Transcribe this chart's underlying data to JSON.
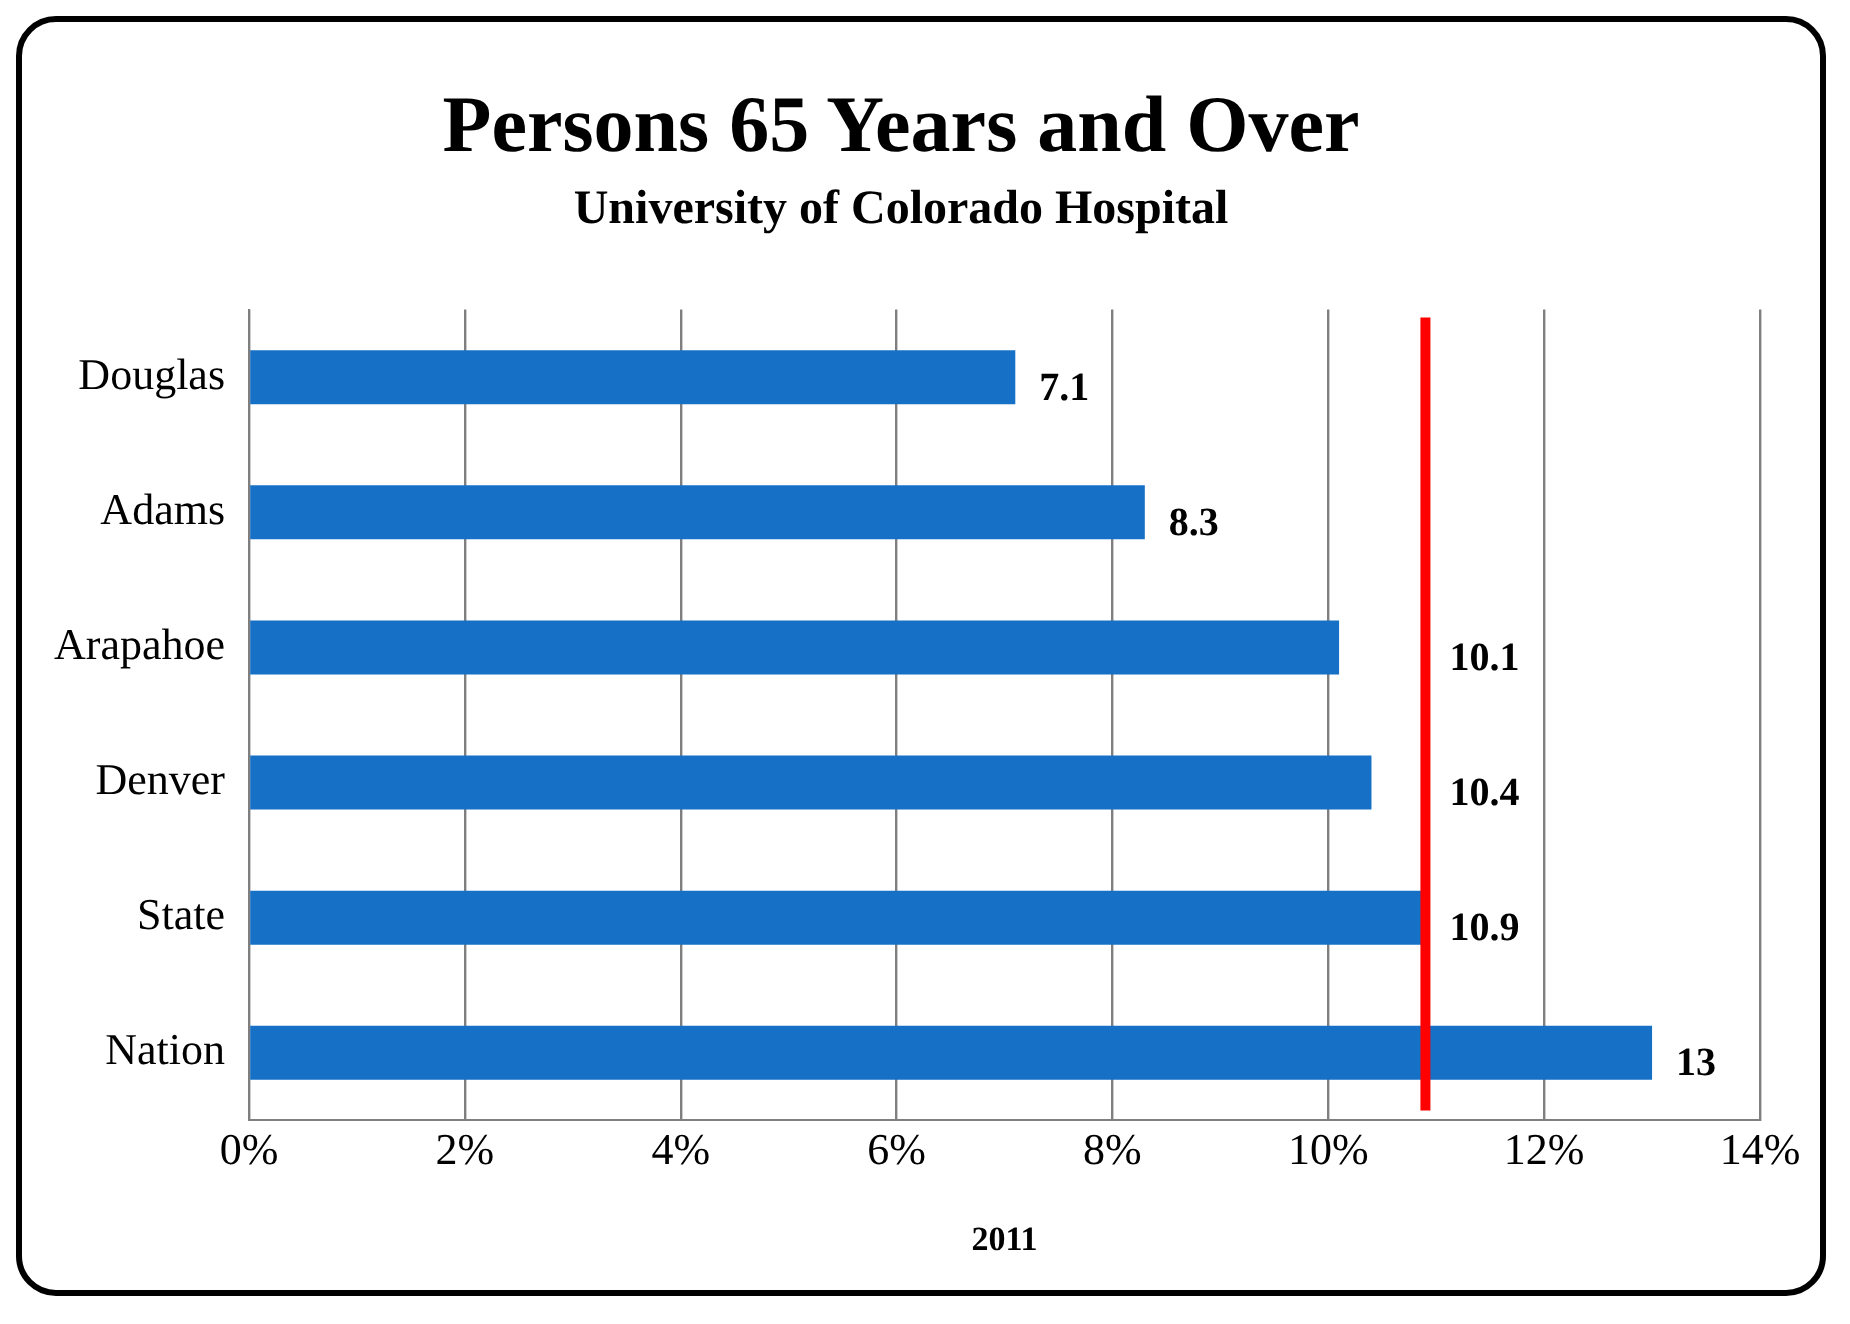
{
  "chart_data": {
    "type": "bar",
    "orientation": "horizontal",
    "title": "Persons 65 Years and Over",
    "subtitle": "University of Colorado Hospital",
    "xlabel": "2011",
    "categories": [
      "Douglas",
      "Adams",
      "Arapahoe",
      "Denver",
      "State",
      "Nation"
    ],
    "values": [
      7.1,
      8.3,
      10.1,
      10.4,
      10.9,
      13
    ],
    "color": "#1570c6",
    "xlim": [
      0,
      14
    ],
    "xticks": [
      {
        "value": 0,
        "label": "0%"
      },
      {
        "value": 2,
        "label": "2%"
      },
      {
        "value": 4,
        "label": "4%"
      },
      {
        "value": 6,
        "label": "6%"
      },
      {
        "value": 8,
        "label": "8%"
      },
      {
        "value": 10,
        "label": "10%"
      },
      {
        "value": 12,
        "label": "12%"
      },
      {
        "value": 14,
        "label": "14%"
      }
    ],
    "ref_lines": [
      {
        "axis": "x",
        "value": 10.9,
        "color": "#ff0000"
      }
    ],
    "data_labels": true,
    "grid": "x",
    "legend": false
  }
}
